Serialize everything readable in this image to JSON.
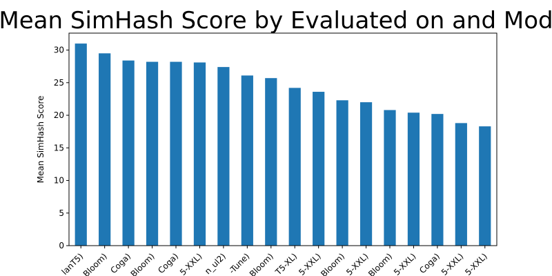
{
  "chart_data": {
    "type": "bar",
    "title": "Mean SimHash Score by Evaluated on and Mod",
    "xlabel": "",
    "ylabel": "Mean SimHash Score",
    "ylim": [
      0,
      32.6
    ],
    "yticks": [
      0,
      5,
      10,
      15,
      20,
      25,
      30
    ],
    "grid": false,
    "bar_color": "#1f77b4",
    "categories": [
      "lanT5)",
      "Bloom)",
      "Coga)",
      "Bloom)",
      "Coga)",
      "5-XXL)",
      "n_ul2)",
      "-Tune)",
      "Bloom)",
      "T5-XL)",
      "5-XXL)",
      "Bloom)",
      "5-XXL)",
      "Bloom)",
      "5-XXL)",
      "Coga)",
      "5-XXL)",
      "5-XXL)"
    ],
    "values": [
      31.0,
      29.5,
      28.4,
      28.2,
      28.2,
      28.1,
      27.4,
      26.1,
      25.7,
      24.2,
      23.6,
      22.3,
      22.0,
      20.8,
      20.4,
      20.2,
      18.8,
      18.3
    ]
  }
}
